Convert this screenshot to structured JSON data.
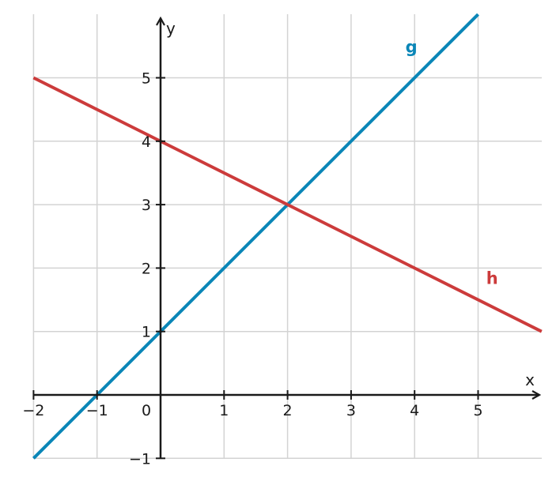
{
  "chart_data": {
    "type": "line",
    "xlabel": "x",
    "ylabel": "y",
    "xlim": [
      -2,
      6
    ],
    "ylim": [
      -1,
      6
    ],
    "grid": true,
    "origin_label": "0",
    "x_ticks": [
      -2,
      -1,
      1,
      2,
      3,
      4,
      5
    ],
    "x_tick_labels": [
      "−2",
      "−1",
      "1",
      "2",
      "3",
      "4",
      "5"
    ],
    "y_ticks": [
      -1,
      1,
      2,
      3,
      4,
      5
    ],
    "y_tick_labels": [
      "−1",
      "1",
      "2",
      "3",
      "4",
      "5"
    ],
    "series": [
      {
        "name": "g",
        "color": "#0a86b7",
        "x": [
          -2,
          5
        ],
        "y": [
          -1,
          6
        ],
        "label_at": [
          3.95,
          5.4
        ]
      },
      {
        "name": "h",
        "color": "#cc3b3b",
        "x": [
          -2,
          6
        ],
        "y": [
          5,
          1
        ],
        "label_at": [
          5.22,
          1.75
        ]
      }
    ]
  }
}
